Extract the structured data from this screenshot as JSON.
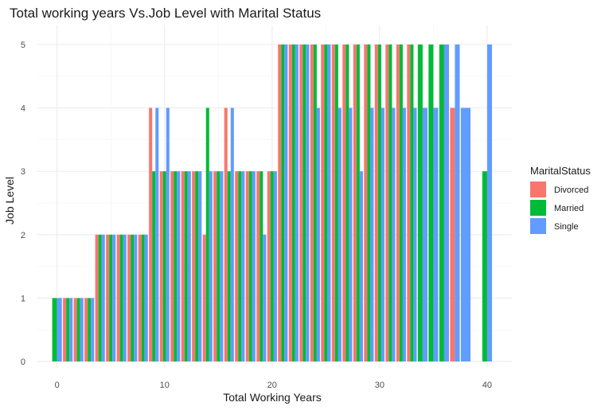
{
  "chart_data": {
    "type": "bar",
    "title": "Total working years Vs.Job Level with Marital Status",
    "xlabel": "Total Working Years",
    "ylabel": "Job Level",
    "xlim": [
      -1.9,
      42.3
    ],
    "ylim": [
      -0.1,
      5.3
    ],
    "x_ticks": [
      "0",
      "10",
      "20",
      "30",
      "40"
    ],
    "x_tick_values": [
      0,
      10,
      20,
      30,
      40
    ],
    "y_ticks": [
      "0",
      "1",
      "2",
      "3",
      "4",
      "5"
    ],
    "y_tick_values": [
      0,
      1,
      2,
      3,
      4,
      5
    ],
    "grid": true,
    "position": "dodge",
    "legend": {
      "title": "MaritalStatus",
      "placement": "right",
      "entries": [
        {
          "label": "Divorced",
          "color": "#F8766D"
        },
        {
          "label": "Married",
          "color": "#00BA38"
        },
        {
          "label": "Single",
          "color": "#619CFF"
        }
      ]
    },
    "x": [
      0,
      1,
      2,
      3,
      4,
      5,
      6,
      7,
      8,
      9,
      10,
      11,
      12,
      13,
      14,
      15,
      16,
      17,
      18,
      19,
      20,
      21,
      22,
      23,
      24,
      25,
      26,
      27,
      28,
      29,
      30,
      31,
      32,
      33,
      34,
      35,
      36,
      37,
      38,
      40
    ],
    "series": [
      {
        "name": "Divorced",
        "color": "#F8766D",
        "values": [
          null,
          1,
          1,
          1,
          2,
          2,
          2,
          2,
          2,
          4,
          3,
          3,
          3,
          3,
          2,
          3,
          4,
          3,
          3,
          3,
          3,
          5,
          5,
          5,
          5,
          5,
          5,
          5,
          5,
          5,
          5,
          5,
          5,
          5,
          null,
          null,
          null,
          4,
          null,
          null
        ]
      },
      {
        "name": "Married",
        "color": "#00BA38",
        "values": [
          1,
          1,
          1,
          1,
          2,
          2,
          2,
          2,
          2,
          3,
          3,
          3,
          3,
          3,
          4,
          3,
          3,
          3,
          3,
          3,
          3,
          5,
          5,
          5,
          5,
          5,
          5,
          5,
          5,
          5,
          5,
          5,
          5,
          5,
          5,
          5,
          5,
          null,
          null,
          3
        ]
      },
      {
        "name": "Single",
        "color": "#619CFF",
        "values": [
          1,
          1,
          1,
          1,
          2,
          2,
          2,
          2,
          2,
          4,
          4,
          3,
          3,
          3,
          3,
          3,
          4,
          3,
          3,
          2,
          3,
          5,
          5,
          5,
          4,
          5,
          4,
          4,
          3,
          4,
          4,
          4,
          4,
          4,
          4,
          4,
          5,
          5,
          4,
          5
        ]
      }
    ]
  }
}
